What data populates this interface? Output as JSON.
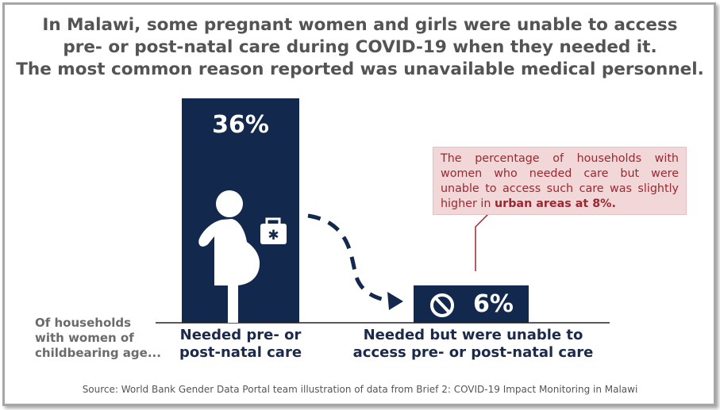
{
  "title_lines": [
    "In Malawi, some pregnant women and girls were unable to access",
    "pre- or post-natal care during COVID-19 when they needed it.",
    "The most common reason reported was unavailable medical personnel."
  ],
  "chart_data": {
    "type": "bar",
    "categories": [
      [
        "Needed pre- or",
        "post-natal care"
      ],
      [
        "Needed but were unable to",
        "access pre- or post-natal care"
      ]
    ],
    "values": [
      36,
      6
    ],
    "value_labels": [
      "36%",
      "6%"
    ],
    "unit": "%",
    "row_label": [
      "Of households",
      "with women of",
      "childbearing age..."
    ],
    "bar_color": "#13284d"
  },
  "callout": {
    "text_before": "The percentage of households with women who needed care but were unable to access such care was slightly higher in ",
    "text_bold": "urban areas at 8%.",
    "bg_color": "#f2d7d9",
    "text_color": "#9b2830"
  },
  "icons": {
    "bar1": [
      "pregnant-woman-icon",
      "medical-kit-icon"
    ],
    "bar2": [
      "prohibited-icon"
    ],
    "connector": "dashed-arrow"
  },
  "source": "Source: World Bank Gender Data Portal team illustration of data from Brief 2: COVID-19 Impact Monitoring in Malawi"
}
